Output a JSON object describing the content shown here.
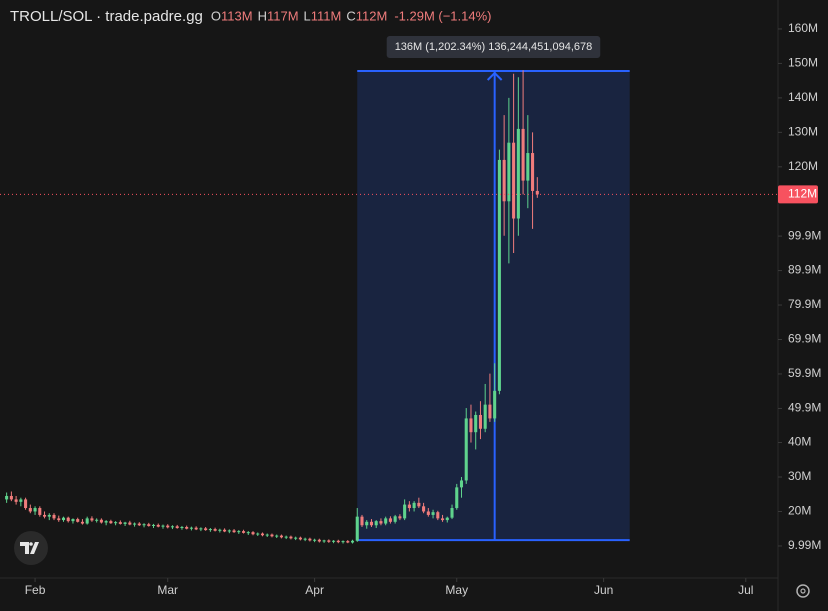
{
  "chart_data": {
    "type": "candlestick",
    "title": "TROLL/SOL · trade.padre.gg",
    "header_ohlc": [
      {
        "label": "O",
        "value": "113M"
      },
      {
        "label": "H",
        "value": "117M"
      },
      {
        "label": "L",
        "value": "111M"
      },
      {
        "label": "C",
        "value": "112M"
      }
    ],
    "change": "-1.29M (−1.14%)",
    "up_color": "#5fd38d",
    "down_color": "#f07c7c",
    "ohlc": [
      [
        23.5,
        25.5,
        22.5,
        24.5
      ],
      [
        24.5,
        25.8,
        23,
        23.5
      ],
      [
        23.5,
        24.5,
        22,
        22.8
      ],
      [
        22.8,
        24,
        21.5,
        23.5
      ],
      [
        23.5,
        24,
        20.5,
        21
      ],
      [
        21,
        22,
        19.5,
        20
      ],
      [
        20,
        21.5,
        19,
        21
      ],
      [
        21,
        21.5,
        18.5,
        19
      ],
      [
        19,
        20,
        18,
        18.5
      ],
      [
        18.5,
        19.5,
        17.5,
        19
      ],
      [
        19,
        19.5,
        17.5,
        18
      ],
      [
        18,
        18.8,
        17,
        17.5
      ],
      [
        17.5,
        18.5,
        17,
        18.2
      ],
      [
        18.2,
        18.5,
        16.8,
        17.2
      ],
      [
        17.2,
        18,
        16.5,
        17.8
      ],
      [
        17.8,
        18.2,
        16.8,
        17
      ],
      [
        17,
        17.8,
        16.2,
        16.5
      ],
      [
        16.5,
        18.5,
        16.2,
        18
      ],
      [
        18,
        18.6,
        17,
        17.4
      ],
      [
        17.4,
        18,
        16.8,
        17.6
      ],
      [
        17.6,
        18,
        16.5,
        16.8
      ],
      [
        16.8,
        17.5,
        16,
        17.2
      ],
      [
        17.2,
        17.6,
        16.4,
        16.6
      ],
      [
        16.6,
        17.2,
        16,
        16.9
      ],
      [
        16.9,
        17.4,
        16.2,
        16.4
      ],
      [
        16.4,
        17,
        15.8,
        16.8
      ],
      [
        16.8,
        17.3,
        16,
        16.2
      ],
      [
        16.2,
        16.8,
        15.6,
        16.5
      ],
      [
        16.5,
        16.9,
        15.8,
        16
      ],
      [
        16,
        16.6,
        15.4,
        16.3
      ],
      [
        16.3,
        16.7,
        15.6,
        15.8
      ],
      [
        15.8,
        16.4,
        15.2,
        16.1
      ],
      [
        16.1,
        16.5,
        15.4,
        15.6
      ],
      [
        15.6,
        16.2,
        15,
        15.9
      ],
      [
        15.9,
        16.3,
        15.1,
        15.4
      ],
      [
        15.4,
        16,
        14.9,
        15.7
      ],
      [
        15.7,
        16.1,
        15,
        15.2
      ],
      [
        15.2,
        15.8,
        14.7,
        15.5
      ],
      [
        15.5,
        15.9,
        14.8,
        15
      ],
      [
        15,
        15.6,
        14.5,
        15.3
      ],
      [
        15.3,
        15.7,
        14.6,
        14.8
      ],
      [
        14.8,
        15.4,
        14.3,
        15.1
      ],
      [
        15.1,
        15.5,
        14.4,
        14.6
      ],
      [
        14.6,
        15.2,
        14.1,
        14.9
      ],
      [
        14.9,
        15.3,
        14.2,
        14.4
      ],
      [
        14.4,
        15,
        13.9,
        14.7
      ],
      [
        14.7,
        15.1,
        14,
        14.2
      ],
      [
        14.2,
        14.8,
        13.7,
        14.5
      ],
      [
        14.5,
        14.9,
        13.8,
        14
      ],
      [
        14,
        14.6,
        13.5,
        14.3
      ],
      [
        14.3,
        14.7,
        13.6,
        13.8
      ],
      [
        13.8,
        14.3,
        13.2,
        14
      ],
      [
        14,
        14.3,
        13.1,
        13.4
      ],
      [
        13.4,
        13.9,
        12.9,
        13.6
      ],
      [
        13.6,
        13.9,
        12.8,
        13.1
      ],
      [
        13.1,
        13.6,
        12.6,
        13.3
      ],
      [
        13.3,
        13.6,
        12.5,
        12.8
      ],
      [
        12.8,
        13.3,
        12.3,
        13
      ],
      [
        13,
        13.3,
        12.2,
        12.5
      ],
      [
        12.5,
        13,
        12,
        12.7
      ],
      [
        12.7,
        13,
        11.9,
        12.2
      ],
      [
        12.2,
        12.7,
        11.7,
        12.4
      ],
      [
        12.4,
        12.7,
        11.6,
        11.9
      ],
      [
        11.9,
        12.4,
        11.4,
        12.1
      ],
      [
        12.1,
        12.4,
        11.3,
        11.6
      ],
      [
        11.6,
        12.1,
        11.1,
        11.8
      ],
      [
        11.8,
        12.1,
        11,
        11.3
      ],
      [
        11.3,
        11.8,
        10.9,
        11.6
      ],
      [
        11.6,
        11.9,
        10.9,
        11.2
      ],
      [
        11.2,
        11.7,
        10.8,
        11.5
      ],
      [
        11.5,
        11.8,
        10.8,
        11.1
      ],
      [
        11.1,
        11.6,
        10.7,
        11.4
      ],
      [
        11.4,
        11.7,
        10.8,
        11
      ],
      [
        11,
        11.8,
        10.7,
        11.5
      ],
      [
        11.5,
        21,
        11.2,
        18.5
      ],
      [
        18.5,
        19,
        15.5,
        16
      ],
      [
        16,
        17.5,
        15,
        17
      ],
      [
        17,
        17.8,
        15.5,
        16
      ],
      [
        16,
        17.5,
        15.2,
        17.2
      ],
      [
        17.2,
        18,
        16,
        16.5
      ],
      [
        16.5,
        18.5,
        16,
        18
      ],
      [
        18,
        18.6,
        16.5,
        17
      ],
      [
        17,
        19,
        16.5,
        18.6
      ],
      [
        18.6,
        19.2,
        17.5,
        18
      ],
      [
        18,
        23.5,
        17.5,
        22
      ],
      [
        22,
        23,
        20,
        21
      ],
      [
        21,
        23,
        20,
        22.5
      ],
      [
        22.5,
        24,
        21,
        21.5
      ],
      [
        21.5,
        22.5,
        19.5,
        20
      ],
      [
        20,
        21,
        18.5,
        19
      ],
      [
        19,
        20.5,
        18,
        19.8
      ],
      [
        19.8,
        20.2,
        17.5,
        18
      ],
      [
        18,
        19,
        17,
        17.5
      ],
      [
        17.5,
        18.5,
        16.8,
        18.2
      ],
      [
        18.2,
        22,
        17.8,
        21
      ],
      [
        21,
        28,
        20.5,
        27
      ],
      [
        27,
        30,
        24,
        29
      ],
      [
        29,
        50,
        28,
        47
      ],
      [
        47,
        51,
        40,
        43
      ],
      [
        43,
        49,
        38,
        48
      ],
      [
        48,
        52,
        41,
        44
      ],
      [
        44,
        57,
        43,
        51
      ],
      [
        51,
        60,
        46,
        47
      ],
      [
        47,
        63,
        46,
        55
      ],
      [
        55,
        125,
        54,
        122
      ],
      [
        122,
        135,
        100,
        110
      ],
      [
        110,
        140,
        92,
        127
      ],
      [
        127,
        147,
        95,
        105
      ],
      [
        105,
        146,
        100,
        131
      ],
      [
        131,
        148,
        112,
        116
      ],
      [
        116,
        135,
        108,
        124
      ],
      [
        124,
        130,
        102,
        113
      ],
      [
        113,
        117,
        111,
        112
      ]
    ],
    "xlim": [
      -1.4,
      162.8
    ],
    "xticks": [
      {
        "value": 6,
        "label": "Feb"
      },
      {
        "value": 34,
        "label": "Mar"
      },
      {
        "value": 65,
        "label": "Apr"
      },
      {
        "value": 95,
        "label": "May"
      },
      {
        "value": 126,
        "label": "Jun"
      },
      {
        "value": 156,
        "label": "Jul"
      }
    ],
    "ylim": [
      0.7,
      168.4
    ],
    "yticks": [
      {
        "value": 160,
        "label": "160M"
      },
      {
        "value": 150,
        "label": "150M"
      },
      {
        "value": 140,
        "label": "140M"
      },
      {
        "value": 130,
        "label": "130M"
      },
      {
        "value": 120,
        "label": "120M"
      },
      {
        "value": 99.9,
        "label": "99.9M"
      },
      {
        "value": 89.9,
        "label": "89.9M"
      },
      {
        "value": 79.9,
        "label": "79.9M"
      },
      {
        "value": 69.9,
        "label": "69.9M"
      },
      {
        "value": 59.9,
        "label": "59.9M"
      },
      {
        "value": 49.9,
        "label": "49.9M"
      },
      {
        "value": 40,
        "label": "40M"
      },
      {
        "value": 30,
        "label": "30M"
      },
      {
        "value": 20,
        "label": "20M"
      },
      {
        "value": 9.99,
        "label": "9.99M"
      }
    ],
    "price_line": {
      "value": 112,
      "label": "112M",
      "color": "#f7525f"
    },
    "measure": {
      "x0": 74,
      "x1": 131.5,
      "y0": 11.7,
      "y1": 147.8,
      "arrow_x": 103,
      "color": "#2962ff",
      "label": "136M (1,202.34%) 136,244,451,094,678"
    }
  }
}
